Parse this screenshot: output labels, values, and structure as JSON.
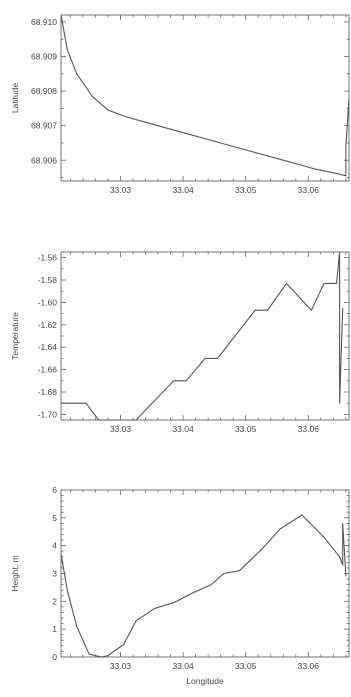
{
  "chart_data": [
    {
      "type": "line",
      "title": "",
      "xlabel": "",
      "ylabel": "Latitude",
      "xlim": [
        33.0205,
        33.0665
      ],
      "ylim": [
        68.9054,
        68.9102
      ],
      "xticks": [
        33.03,
        33.04,
        33.05,
        33.06
      ],
      "xtick_labels": [
        "33.03",
        "33.04",
        "33.05",
        "33.06"
      ],
      "yticks": [
        68.906,
        68.907,
        68.908,
        68.909,
        68.91
      ],
      "ytick_labels": [
        "68.906",
        "68.907",
        "68.908",
        "68.909",
        "68.910"
      ],
      "grid": false,
      "series": [
        {
          "x": [
            33.0205,
            33.0215,
            33.023,
            33.0255,
            33.028,
            33.031,
            33.036,
            33.041,
            33.046,
            33.051,
            33.056,
            33.061,
            33.0645,
            33.066,
            33.066,
            33.0665
          ],
          "y": [
            68.9102,
            68.9092,
            68.9085,
            68.90785,
            68.90745,
            68.90725,
            68.907,
            68.90675,
            68.9065,
            68.90625,
            68.906,
            68.90575,
            68.90562,
            68.90555,
            68.9064,
            68.9078
          ]
        }
      ]
    },
    {
      "type": "line",
      "title": "",
      "xlabel": "",
      "ylabel": "Temperature",
      "xlim": [
        33.0205,
        33.0665
      ],
      "ylim": [
        -1.705,
        -1.555
      ],
      "xticks": [
        33.03,
        33.04,
        33.05,
        33.06
      ],
      "xtick_labels": [
        "33.03",
        "33.04",
        "33.05",
        "33.06"
      ],
      "yticks": [
        -1.7,
        -1.68,
        -1.66,
        -1.64,
        -1.62,
        -1.6,
        -1.58,
        -1.56
      ],
      "ytick_labels": [
        "-1.70",
        "-1.68",
        "-1.66",
        "-1.64",
        "-1.62",
        "-1.60",
        "-1.58",
        "-1.56"
      ],
      "grid": false,
      "series": [
        {
          "x": [
            33.0205,
            33.0245,
            33.0265,
            33.0325,
            33.0385,
            33.0405,
            33.0435,
            33.0455,
            33.0515,
            33.0535,
            33.0565,
            33.0605,
            33.0625,
            33.0645,
            33.065,
            33.065,
            33.0655
          ],
          "y": [
            -1.69,
            -1.69,
            -1.705,
            -1.705,
            -1.67,
            -1.67,
            -1.65,
            -1.65,
            -1.607,
            -1.607,
            -1.583,
            -1.607,
            -1.583,
            -1.583,
            -1.555,
            -1.69,
            -1.605
          ]
        }
      ]
    },
    {
      "type": "line",
      "title": "",
      "xlabel": "Longitude",
      "ylabel": "Height, m",
      "xlim": [
        33.0205,
        33.0665
      ],
      "ylim": [
        0,
        6
      ],
      "xticks": [
        33.03,
        33.04,
        33.05,
        33.06
      ],
      "xtick_labels": [
        "33.03",
        "33.04",
        "33.05",
        "33.06"
      ],
      "yticks": [
        0,
        1,
        2,
        3,
        4,
        5,
        6
      ],
      "ytick_labels": [
        "0",
        "1",
        "2",
        "3",
        "4",
        "5",
        "6"
      ],
      "grid": false,
      "series": [
        {
          "x": [
            33.0205,
            33.0215,
            33.023,
            33.025,
            33.027,
            33.028,
            33.0305,
            33.0325,
            33.0355,
            33.0385,
            33.0415,
            33.0445,
            33.0465,
            33.049,
            33.0525,
            33.0555,
            33.059,
            33.0625,
            33.065,
            33.0655,
            33.0655,
            33.066
          ],
          "y": [
            3.7,
            2.4,
            1.1,
            0.1,
            0.0,
            0.05,
            0.45,
            1.3,
            1.75,
            1.95,
            2.3,
            2.6,
            3.0,
            3.1,
            3.85,
            4.6,
            5.1,
            4.3,
            3.6,
            3.3,
            4.8,
            2.9
          ]
        }
      ]
    }
  ]
}
